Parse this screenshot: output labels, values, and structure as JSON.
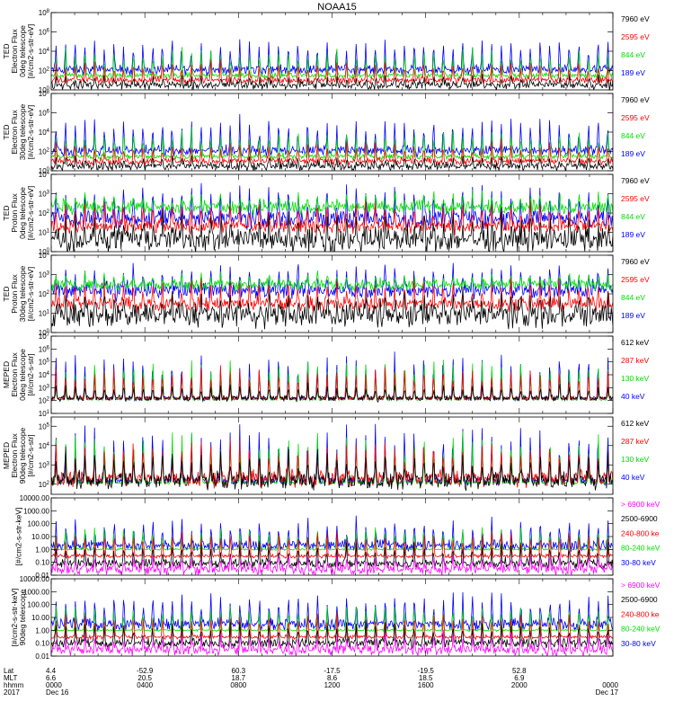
{
  "title": "NOAA15",
  "colors": {
    "black": "#000000",
    "red": "#ff0000",
    "green": "#00e000",
    "blue": "#0000ff",
    "magenta": "#ff00ff"
  },
  "chart_data": [
    {
      "type": "line",
      "ylabel": [
        "TED",
        "Electron Flux",
        "0deg telescope",
        "[#/cm2-s-str-eV]"
      ],
      "log": true,
      "yticks": [
        "10^0",
        "10^2",
        "10^4",
        "10^6",
        "10^8"
      ],
      "ylim": [
        1,
        100000000
      ],
      "series": [
        {
          "name": "7960 eV",
          "color": "black",
          "typical": 3,
          "sigma": 0.3,
          "peak": 30
        },
        {
          "name": "2595 eV",
          "color": "red",
          "typical": 10,
          "sigma": 0.25,
          "peak": 1000
        },
        {
          "name": "844 eV",
          "color": "green",
          "typical": 30,
          "sigma": 0.2,
          "peak": 20000
        },
        {
          "name": "189 eV",
          "color": "blue",
          "typical": 120,
          "sigma": 0.35,
          "peak": 300000
        }
      ]
    },
    {
      "type": "line",
      "ylabel": [
        "TED",
        "Electron Flux",
        "30deg telescope",
        "[#/cm2-s-str-eV]"
      ],
      "log": true,
      "yticks": [
        "10^0",
        "10^2",
        "10^4",
        "10^6",
        "10^8"
      ],
      "ylim": [
        1,
        100000000
      ],
      "series": [
        {
          "name": "7960 eV",
          "color": "black",
          "typical": 3,
          "sigma": 0.3,
          "peak": 30
        },
        {
          "name": "2595 eV",
          "color": "red",
          "typical": 10,
          "sigma": 0.25,
          "peak": 1000
        },
        {
          "name": "844 eV",
          "color": "green",
          "typical": 30,
          "sigma": 0.2,
          "peak": 20000
        },
        {
          "name": "189 eV",
          "color": "blue",
          "typical": 120,
          "sigma": 0.35,
          "peak": 300000
        }
      ]
    },
    {
      "type": "line",
      "ylabel": [
        "TED",
        "Proton Flux",
        "0deg telescope",
        "[#/cm2-s-str-eV]"
      ],
      "log": true,
      "yticks": [
        "10^0",
        "10^1",
        "10^2",
        "10^3",
        "10^4"
      ],
      "ylim": [
        1,
        10000
      ],
      "series": [
        {
          "name": "7960 eV",
          "color": "black",
          "typical": 4,
          "sigma": 0.45,
          "peak": 60
        },
        {
          "name": "2595 eV",
          "color": "red",
          "typical": 20,
          "sigma": 0.25,
          "peak": 400
        },
        {
          "name": "844 eV",
          "color": "green",
          "typical": 200,
          "sigma": 0.25,
          "peak": 1000
        },
        {
          "name": "189 eV",
          "color": "blue",
          "typical": 50,
          "sigma": 0.35,
          "peak": 3000
        }
      ]
    },
    {
      "type": "line",
      "ylabel": [
        "TED",
        "Proton Flux",
        "30deg telescope",
        "[#/cm2-s-str-eV]"
      ],
      "log": true,
      "yticks": [
        "10^0",
        "10^1",
        "10^2",
        "10^3",
        "10^4"
      ],
      "ylim": [
        1,
        10000
      ],
      "series": [
        {
          "name": "7960 eV",
          "color": "black",
          "typical": 8,
          "sigma": 0.45,
          "peak": 100
        },
        {
          "name": "2595 eV",
          "color": "red",
          "typical": 30,
          "sigma": 0.25,
          "peak": 500
        },
        {
          "name": "844 eV",
          "color": "green",
          "typical": 300,
          "sigma": 0.2,
          "peak": 1000
        },
        {
          "name": "189 eV",
          "color": "blue",
          "typical": 150,
          "sigma": 0.3,
          "peak": 3000
        }
      ]
    },
    {
      "type": "line",
      "ylabel": [
        "MEPED",
        "Electron Flux",
        "0deg telescope",
        "[#/cm2-s-str]"
      ],
      "log": true,
      "yticks": [
        "10^1",
        "10^2",
        "10^3",
        "10^4",
        "10^5",
        "10^6",
        "10^7"
      ],
      "ylim": [
        10,
        10000000
      ],
      "series": [
        {
          "name": "612 keV",
          "color": "black",
          "typical": 150,
          "sigma": 0.15,
          "peak": 2000
        },
        {
          "name": "287 keV",
          "color": "red",
          "typical": 150,
          "sigma": 0.1,
          "peak": 50000
        },
        {
          "name": "130 keV",
          "color": "green",
          "typical": 120,
          "sigma": 0.05,
          "peak": 300000
        },
        {
          "name": "40 keV",
          "color": "blue",
          "typical": 150,
          "sigma": 0.1,
          "peak": 1000000
        }
      ]
    },
    {
      "type": "line",
      "ylabel": [
        "MEPED",
        "Electron Flux",
        "90deg telescope",
        "[#/cm2-s-str]"
      ],
      "log": true,
      "yticks": [
        "10^2",
        "10^3",
        "10^4",
        "10^5"
      ],
      "ylim": [
        30,
        300000
      ],
      "series": [
        {
          "name": "612 keV",
          "color": "black",
          "typical": 150,
          "sigma": 0.3,
          "peak": 5000
        },
        {
          "name": "287 keV",
          "color": "red",
          "typical": 200,
          "sigma": 0.3,
          "peak": 20000
        },
        {
          "name": "130 keV",
          "color": "green",
          "typical": 120,
          "sigma": 0.05,
          "peak": 60000
        },
        {
          "name": "40 keV",
          "color": "blue",
          "typical": 150,
          "sigma": 0.15,
          "peak": 150000
        }
      ]
    },
    {
      "type": "line",
      "ylabel": [
        "[#/cm2-s-str-keV]"
      ],
      "log": true,
      "yticks": [
        "0.01",
        "0.10",
        "1.00",
        "10.00",
        "100.00",
        "1000.00",
        "10000.00"
      ],
      "ylim": [
        0.01,
        10000
      ],
      "series": [
        {
          "name": "> 6900 keV",
          "color": "magenta",
          "typical": 0.03,
          "sigma": 0.3,
          "peak": 0.3
        },
        {
          "name": "2500-6900",
          "color": "black",
          "typical": 0.08,
          "sigma": 0.25,
          "peak": 3
        },
        {
          "name": "240-800 ke",
          "color": "red",
          "typical": 0.3,
          "sigma": 0.1,
          "peak": 30
        },
        {
          "name": "80-240 keV",
          "color": "green",
          "typical": 1,
          "sigma": 0.05,
          "peak": 60
        },
        {
          "name": "30-80 keV",
          "color": "blue",
          "typical": 2,
          "sigma": 0.3,
          "peak": 300
        }
      ]
    },
    {
      "type": "line",
      "ylabel": [
        "[#/cm2-s-str-keV]",
        "90deg telescope"
      ],
      "log": true,
      "yticks": [
        "0.01",
        "0.10",
        "1.00",
        "10.00",
        "100.00",
        "1000.00",
        "10000.00"
      ],
      "ylim": [
        0.01,
        10000
      ],
      "series": [
        {
          "name": "> 6900 keV",
          "color": "magenta",
          "typical": 0.03,
          "sigma": 0.3,
          "peak": 0.5
        },
        {
          "name": "2500-6900",
          "color": "black",
          "typical": 0.1,
          "sigma": 0.25,
          "peak": 5
        },
        {
          "name": "240-800 ke",
          "color": "red",
          "typical": 0.3,
          "sigma": 0.1,
          "peak": 30
        },
        {
          "name": "80-240 keV",
          "color": "green",
          "typical": 1,
          "sigma": 0.05,
          "peak": 100
        },
        {
          "name": "30-80 keV",
          "color": "blue",
          "typical": 3,
          "sigma": 0.3,
          "peak": 1000
        }
      ]
    }
  ],
  "xaxis": {
    "row_labels": [
      "Lat",
      "MLT",
      "hhmm",
      "2017"
    ],
    "ticks": [
      {
        "hour": 0,
        "lat": "4.4",
        "mlt": "6.6",
        "hhmm": "0000",
        "date": "Dec 16"
      },
      {
        "hour": 4,
        "lat": "-52.9",
        "mlt": "20.5",
        "hhmm": "0400"
      },
      {
        "hour": 8,
        "lat": "60.3",
        "mlt": "18.7",
        "hhmm": "0800"
      },
      {
        "hour": 12,
        "lat": "-17.5",
        "mlt": "8.6",
        "hhmm": "1200"
      },
      {
        "hour": 16,
        "lat": "-19.5",
        "mlt": "18.5",
        "hhmm": "1600"
      },
      {
        "hour": 20,
        "lat": "52.8",
        "mlt": "6.9",
        "hhmm": "2000"
      },
      {
        "hour": 24,
        "hhmm": "0000",
        "date": "Dec 17"
      }
    ]
  }
}
